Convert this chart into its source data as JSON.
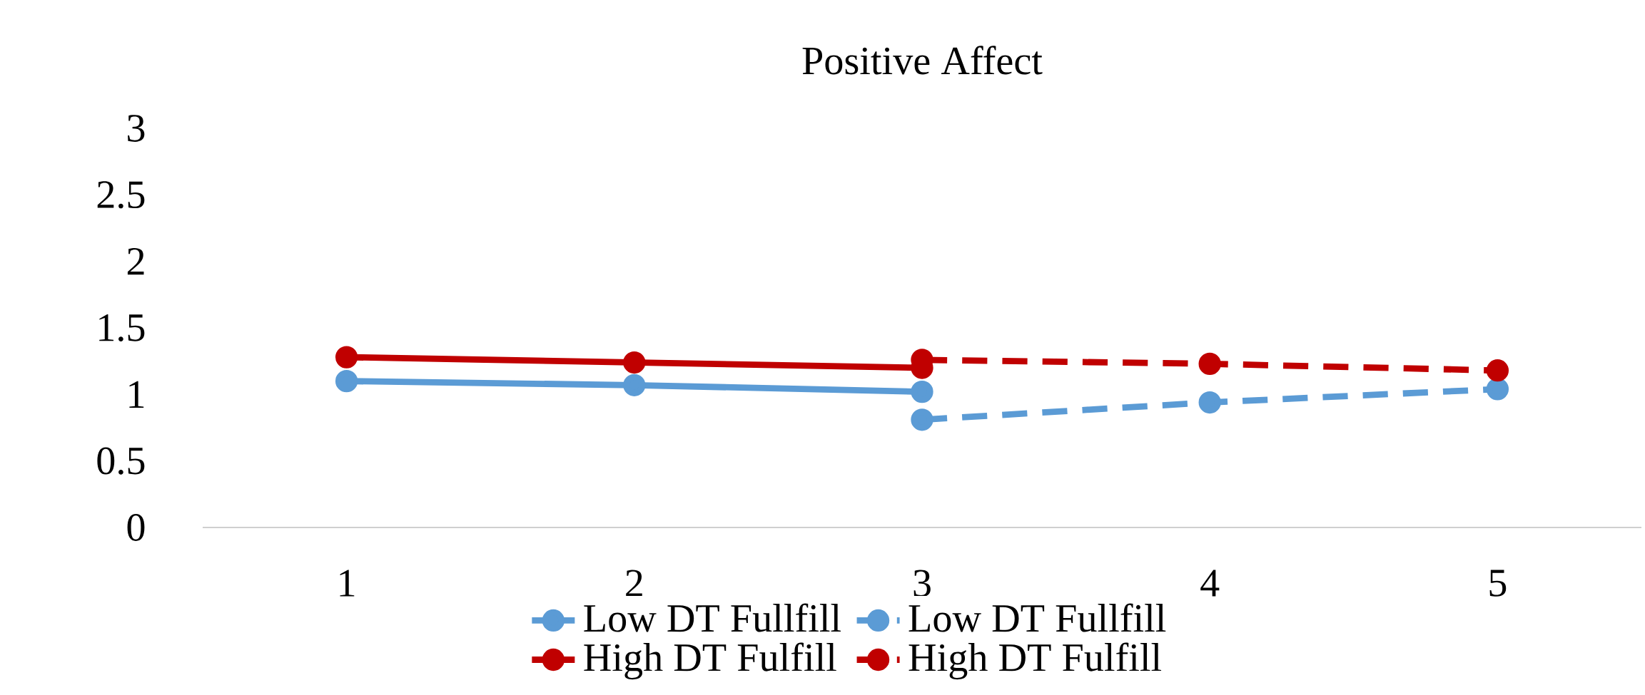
{
  "chart_data": {
    "type": "line",
    "title": "Positive Affect",
    "categories": [
      "1",
      "2",
      "3",
      "4",
      "5"
    ],
    "series": [
      {
        "name": "Low DT Fullfill",
        "color": "#5b9bd5",
        "line_style": "solid",
        "values": [
          1.1,
          1.07,
          1.02,
          null,
          null
        ]
      },
      {
        "name": "Low DT Fullfill",
        "color": "#5b9bd5",
        "line_style": "dashed",
        "values": [
          null,
          null,
          0.81,
          0.94,
          1.04
        ]
      },
      {
        "name": "High DT Fulfill",
        "color": "#c00000",
        "line_style": "solid",
        "values": [
          1.28,
          1.24,
          1.2,
          null,
          null
        ]
      },
      {
        "name": "High DT Fulfill",
        "color": "#c00000",
        "line_style": "dashed",
        "values": [
          null,
          null,
          1.26,
          1.23,
          1.18
        ]
      }
    ],
    "ylim": [
      0,
      3
    ],
    "yticks": [
      0,
      0.5,
      1,
      1.5,
      2,
      2.5,
      3
    ],
    "marker": "circle",
    "legend": "bottom"
  }
}
